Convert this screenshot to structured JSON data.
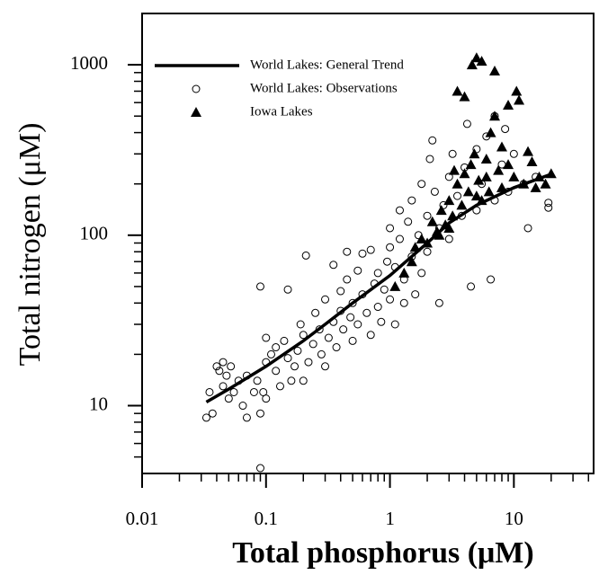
{
  "chart_data": {
    "type": "scatter",
    "xlabel": "Total phosphorus (μM)",
    "ylabel": "Total nitrogen (μM)",
    "xscale": "log",
    "yscale": "log",
    "xlim": [
      0.01,
      44
    ],
    "ylim": [
      4,
      2000
    ],
    "xticks": [
      0.01,
      0.1,
      1,
      10
    ],
    "yticks": [
      10,
      100,
      1000
    ],
    "legend": "upper left",
    "series": [
      {
        "name": "World Lakes: General Trend",
        "marker": "line",
        "color": "#000000",
        "x": [
          0.033,
          0.05,
          0.1,
          0.2,
          0.3,
          0.5,
          1,
          2,
          3,
          5,
          10,
          20
        ],
        "values": [
          10.5,
          12.5,
          17,
          24,
          30,
          40,
          58,
          90,
          118,
          150,
          190,
          228
        ]
      },
      {
        "name": "World Lakes: Observations",
        "marker": "circle",
        "color": "#000000",
        "x": [
          0.033,
          0.035,
          0.037,
          0.04,
          0.042,
          0.045,
          0.045,
          0.048,
          0.05,
          0.052,
          0.055,
          0.06,
          0.065,
          0.07,
          0.07,
          0.08,
          0.085,
          0.09,
          0.09,
          0.09,
          0.095,
          0.1,
          0.1,
          0.1,
          0.11,
          0.12,
          0.12,
          0.13,
          0.14,
          0.15,
          0.15,
          0.16,
          0.17,
          0.18,
          0.19,
          0.2,
          0.2,
          0.21,
          0.22,
          0.24,
          0.25,
          0.27,
          0.28,
          0.3,
          0.3,
          0.32,
          0.35,
          0.35,
          0.37,
          0.4,
          0.4,
          0.42,
          0.45,
          0.45,
          0.48,
          0.5,
          0.5,
          0.55,
          0.55,
          0.6,
          0.6,
          0.65,
          0.7,
          0.7,
          0.75,
          0.8,
          0.8,
          0.85,
          0.9,
          0.95,
          1,
          1,
          1,
          1.1,
          1.1,
          1.2,
          1.2,
          1.3,
          1.3,
          1.4,
          1.5,
          1.5,
          1.6,
          1.7,
          1.8,
          1.8,
          2,
          2,
          2.1,
          2.2,
          2.3,
          2.5,
          2.5,
          2.7,
          3,
          3,
          3.2,
          3.5,
          3.8,
          4,
          4.2,
          4.5,
          5,
          5,
          5.5,
          6,
          6.5,
          7,
          7,
          8,
          8.5,
          9,
          10,
          12,
          13,
          15,
          19,
          19
        ],
        "values": [
          8.5,
          12,
          9,
          17,
          16,
          13,
          18,
          15,
          11,
          17,
          12,
          14,
          10,
          8.5,
          15,
          12,
          14,
          9,
          4.3,
          50,
          12,
          18,
          25,
          11,
          20,
          22,
          16,
          13,
          24,
          48,
          19,
          14,
          17,
          21,
          30,
          26,
          14,
          76,
          18,
          23,
          35,
          28,
          20,
          42,
          17,
          25,
          67,
          31,
          22,
          36,
          47,
          28,
          80,
          55,
          33,
          24,
          40,
          62,
          30,
          78,
          45,
          35,
          82,
          26,
          52,
          60,
          38,
          31,
          48,
          70,
          110,
          42,
          85,
          65,
          30,
          140,
          95,
          55,
          40,
          120,
          75,
          160,
          45,
          100,
          200,
          60,
          130,
          80,
          280,
          360,
          180,
          110,
          40,
          150,
          220,
          95,
          300,
          170,
          130,
          250,
          450,
          50,
          320,
          140,
          200,
          380,
          55,
          500,
          160,
          260,
          420,
          180,
          300,
          200,
          110,
          220,
          155,
          145
        ]
      },
      {
        "name": "Iowa Lakes",
        "marker": "triangle",
        "color": "#000000",
        "x": [
          1.1,
          1.3,
          1.5,
          1.6,
          1.8,
          2,
          2.2,
          2.4,
          2.5,
          2.6,
          2.8,
          3,
          3,
          3.2,
          3.3,
          3.5,
          3.5,
          3.8,
          4,
          4,
          4.3,
          4.5,
          4.6,
          4.8,
          5,
          5,
          5.2,
          5.5,
          5.5,
          6,
          6,
          6.3,
          6.5,
          7,
          7,
          7.5,
          8,
          8,
          9,
          9,
          10,
          10.5,
          11,
          12,
          13,
          14,
          15,
          16,
          18,
          20
        ],
        "values": [
          50,
          60,
          70,
          85,
          95,
          90,
          120,
          105,
          100,
          140,
          115,
          160,
          110,
          130,
          240,
          200,
          700,
          150,
          230,
          650,
          180,
          260,
          1000,
          300,
          1100,
          170,
          210,
          1050,
          160,
          280,
          220,
          180,
          400,
          920,
          500,
          240,
          330,
          190,
          260,
          580,
          220,
          700,
          620,
          200,
          310,
          270,
          190,
          220,
          200,
          230
        ]
      }
    ]
  }
}
